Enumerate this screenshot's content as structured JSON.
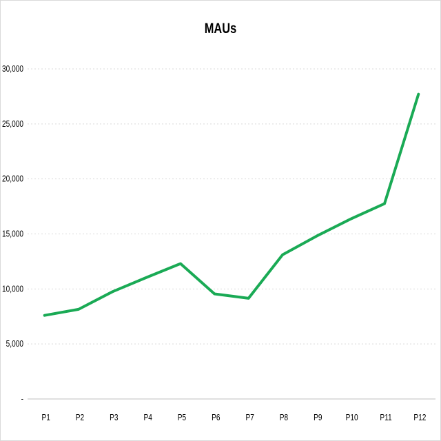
{
  "chart_data": {
    "type": "line",
    "title": "MAUs",
    "xlabel": "",
    "ylabel": "",
    "categories": [
      "P1",
      "P2",
      "P3",
      "P4",
      "P5",
      "P6",
      "P7",
      "P8",
      "P9",
      "P10",
      "P11",
      "P12"
    ],
    "series": [
      {
        "values": [
          7600,
          8150,
          9750,
          11050,
          12300,
          9550,
          9150,
          13100,
          14800,
          16350,
          17750,
          27700
        ]
      }
    ],
    "ylim": [
      0,
      30000
    ],
    "yticks": [
      0,
      5000,
      10000,
      15000,
      20000,
      25000,
      30000
    ],
    "ytick_labels": [
      "-",
      "5,000",
      "10,000",
      "15,000",
      "20,000",
      "25,000",
      "30,000"
    ],
    "grid": true,
    "legend": "none",
    "colors": {
      "line": "#1aaa55",
      "grid": "#d9d9d9",
      "axis": "#bfbfbf",
      "text": "#000000"
    }
  }
}
